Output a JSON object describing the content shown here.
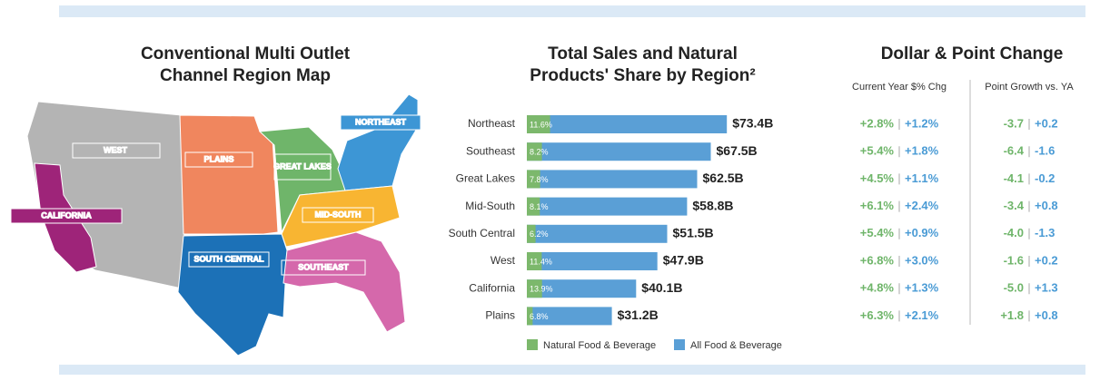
{
  "map": {
    "title": "Conventional Multi Outlet Channel Region Map",
    "regions": [
      "WEST",
      "PLAINS",
      "GREAT LAKES",
      "NORTHEAST",
      "CALIFORNIA",
      "MID-SOUTH",
      "SOUTH CENTRAL",
      "SOUTHEAST"
    ]
  },
  "chart_data": {
    "type": "bar",
    "stacking": "share",
    "title": "Total Sales and Natural Products' Share by Region²",
    "categories": [
      "Northeast",
      "Southeast",
      "Great Lakes",
      "Mid-South",
      "South Central",
      "West",
      "California",
      "Plains"
    ],
    "series": [
      {
        "name": "Natural Food & Beverage",
        "color": "#7cb86c",
        "values": [
          11.6,
          8.2,
          7.8,
          8.1,
          6.2,
          11.4,
          13.9,
          6.8
        ],
        "value_labels": [
          "11.6%",
          "8.2%",
          "7.8%",
          "8.1%",
          "6.2%",
          "11.4%",
          "13.9%",
          "6.8%"
        ]
      },
      {
        "name": "All Food & Beverage",
        "color": "#5a9fd6",
        "values": [
          73.4,
          67.5,
          62.5,
          58.8,
          51.5,
          47.9,
          40.1,
          31.2
        ],
        "value_labels": [
          "$73.4B",
          "$67.5B",
          "$62.5B",
          "$58.8B",
          "$51.5B",
          "$47.9B",
          "$40.1B",
          "$31.2B"
        ]
      }
    ]
  },
  "change_table": {
    "title": "Dollar & Point Change",
    "columns": [
      "Current Year $% Chg",
      "Point Growth vs. YA"
    ],
    "rows": [
      [
        "+2.8%",
        "+1.2%",
        "-3.7",
        "+0.2"
      ],
      [
        "+5.4%",
        "+1.8%",
        "-6.4",
        "-1.6"
      ],
      [
        "+4.5%",
        "+1.1%",
        "-4.1",
        "-0.2"
      ],
      [
        "+6.1%",
        "+2.4%",
        "-3.4",
        "+0.8"
      ],
      [
        "+5.4%",
        "+0.9%",
        "-4.0",
        "-1.3"
      ],
      [
        "+6.8%",
        "+3.0%",
        "-1.6",
        "+0.2"
      ],
      [
        "+4.8%",
        "+1.3%",
        "-5.0",
        "+1.3"
      ],
      [
        "+6.3%",
        "+2.1%",
        "+1.8",
        "+0.8"
      ]
    ]
  }
}
